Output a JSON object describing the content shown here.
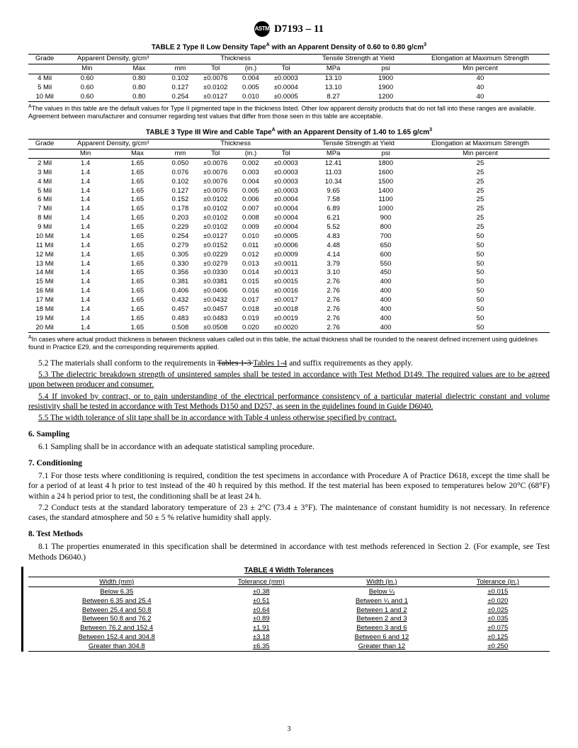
{
  "header": {
    "designation": "D7193 – 11"
  },
  "table2": {
    "title_pre": "TABLE 2  Type II Low Density Tape",
    "title_post": " with an Apparent Density of 0.60 to 0.80 g/cm",
    "note_letter": "A",
    "group_headers": [
      "Grade",
      "Apparent Density, g/cm³",
      "Thickness",
      "Tensile Strength at Yield",
      "Elongation at Maximum Strength"
    ],
    "sub_headers": [
      "",
      "Min",
      "Max",
      "mm",
      "Tol",
      "(in.)",
      "Tol",
      "MPa",
      "psi",
      "Min percent"
    ],
    "rows": [
      [
        "4 Mil",
        "0.60",
        "0.80",
        "0.102",
        "±0.0076",
        "0.004",
        "±0.0003",
        "13.10",
        "1900",
        "40"
      ],
      [
        "5 Mil",
        "0.60",
        "0.80",
        "0.127",
        "±0.0102",
        "0.005",
        "±0.0004",
        "13.10",
        "1900",
        "40"
      ],
      [
        "10 Mil",
        "0.60",
        "0.80",
        "0.254",
        "±0.0127",
        "0.010",
        "±0.0005",
        "8.27",
        "1200",
        "40"
      ]
    ],
    "footnote": "The values in this table are the default values for Type II pigmented tape in the thickness listed. Other low apparent density products that do not fall into these ranges are available. Agreement between manufacturer and consumer regarding test values that differ from those seen in this table are acceptable."
  },
  "table3": {
    "title_pre": "TABLE 3  Type III Wire and Cable Tape",
    "title_post": " with an Apparent Density of 1.40 to 1.65 g/cm",
    "note_letter": "A",
    "group_headers": [
      "Grade",
      "Apparent Density, g/cm³",
      "Thickness",
      "Tensile Strength at Yield",
      "Elongation at Maximum Strength"
    ],
    "sub_headers": [
      "",
      "Min",
      "Max",
      "mm",
      "Tol",
      "(in.)",
      "Tol",
      "MPa",
      "psi",
      "Min percent"
    ],
    "rows": [
      [
        "2 Mil",
        "1.4",
        "1.65",
        "0.050",
        "±0.0076",
        "0.002",
        "±0.0003",
        "12.41",
        "1800",
        "25"
      ],
      [
        "3 Mil",
        "1.4",
        "1.65",
        "0.076",
        "±0.0076",
        "0.003",
        "±0.0003",
        "11.03",
        "1600",
        "25"
      ],
      [
        "4 Mil",
        "1.4",
        "1.65",
        "0.102",
        "±0.0076",
        "0.004",
        "±0.0003",
        "10.34",
        "1500",
        "25"
      ],
      [
        "5 Mil",
        "1.4",
        "1.65",
        "0.127",
        "±0.0076",
        "0.005",
        "±0.0003",
        "9.65",
        "1400",
        "25"
      ],
      [
        "6 Mil",
        "1.4",
        "1.65",
        "0.152",
        "±0.0102",
        "0.006",
        "±0.0004",
        "7.58",
        "1100",
        "25"
      ],
      [
        "7 Mil",
        "1.4",
        "1.65",
        "0.178",
        "±0.0102",
        "0.007",
        "±0.0004",
        "6.89",
        "1000",
        "25"
      ],
      [
        "8 Mil",
        "1.4",
        "1.65",
        "0.203",
        "±0.0102",
        "0.008",
        "±0.0004",
        "6.21",
        "900",
        "25"
      ],
      [
        "9 Mil",
        "1.4",
        "1.65",
        "0.229",
        "±0.0102",
        "0.009",
        "±0.0004",
        "5.52",
        "800",
        "25"
      ],
      [
        "10 Mil",
        "1.4",
        "1.65",
        "0.254",
        "±0.0127",
        "0.010",
        "±0.0005",
        "4.83",
        "700",
        "50"
      ],
      [
        "11 Mil",
        "1.4",
        "1.65",
        "0.279",
        "±0.0152",
        "0.011",
        "±0.0006",
        "4.48",
        "650",
        "50"
      ],
      [
        "12 Mil",
        "1.4",
        "1.65",
        "0.305",
        "±0.0229",
        "0.012",
        "±0.0009",
        "4.14",
        "600",
        "50"
      ],
      [
        "13 Mil",
        "1.4",
        "1.65",
        "0.330",
        "±0.0279",
        "0.013",
        "±0.0011",
        "3.79",
        "550",
        "50"
      ],
      [
        "14 Mil",
        "1.4",
        "1.65",
        "0.356",
        "±0.0330",
        "0.014",
        "±0.0013",
        "3.10",
        "450",
        "50"
      ],
      [
        "15 Mil",
        "1.4",
        "1.65",
        "0.381",
        "±0.0381",
        "0.015",
        "±0.0015",
        "2.76",
        "400",
        "50"
      ],
      [
        "16 Mil",
        "1.4",
        "1.65",
        "0.406",
        "±0.0406",
        "0.016",
        "±0.0016",
        "2.76",
        "400",
        "50"
      ],
      [
        "17 Mil",
        "1.4",
        "1.65",
        "0.432",
        "±0.0432",
        "0.017",
        "±0.0017",
        "2.76",
        "400",
        "50"
      ],
      [
        "18 Mil",
        "1.4",
        "1.65",
        "0.457",
        "±0.0457",
        "0.018",
        "±0.0018",
        "2.76",
        "400",
        "50"
      ],
      [
        "19 Mil",
        "1.4",
        "1.65",
        "0.483",
        "±0.0483",
        "0.019",
        "±0.0019",
        "2.76",
        "400",
        "50"
      ],
      [
        "20 Mil",
        "1.4",
        "1.65",
        "0.508",
        "±0.0508",
        "0.020",
        "±0.0020",
        "2.76",
        "400",
        "50"
      ]
    ],
    "footnote": "In cases where actual product thickness is between thickness values called out in this table, the actual thickness shall be rounded to the nearest defined increment using guidelines found in Practice E29, and the corresponding requirements applied."
  },
  "body": {
    "p52a": "5.2 The materials shall conform to the requirements in ",
    "p52_strike": "Tables 1-3 ",
    "p52_und": "Tables 1-4",
    "p52b": " and suffix requirements as they apply.",
    "p53": "5.3 The dielectric breakdown strength of unsintered samples shall be tested in accordance with Test Method D149. The required values are to be agreed upon between producer and consumer.",
    "p54": "5.4 If invoked by contract, or to gain understanding of the electrical performance consistency of a particular material dielectric constant and volume resistivity shall be tested in accordance with Test Methods D150 and D257, as seen in the guidelines found in Guide D6040.",
    "p55": "5.5 The width tolerance of slit tape shall be in accordance with Table 4 unless otherwise specified by contract.",
    "s6": "6. Sampling",
    "p61": "6.1 Sampling shall be in accordance with an adequate statistical sampling procedure.",
    "s7": "7. Conditioning",
    "p71": "7.1 For those tests where conditioning is required, condition the test specimens in accordance with Procedure A of Practice D618, except the time shall be for a period of at least 4 h prior to test instead of the 40 h required by this method. If the test material has been exposed to temperatures below 20°C (68°F) within a 24 h period prior to test, the conditioning shall be at least 24 h.",
    "p72": "7.2 Conduct tests at the standard laboratory temperature of 23 ± 2°C (73.4 ± 3°F). The maintenance of constant humidity is not necessary. In reference cases, the standard atmosphere and 50 ± 5 % relative humidity shall apply.",
    "s8": "8. Test Methods",
    "p81": "8.1 The properties enumerated in this specification shall be determined in accordance with test methods referenced in Section 2. (For example, see Test Methods D6040.)"
  },
  "table4": {
    "title": "TABLE 4  Width Tolerances",
    "headers": [
      "Width (mm)",
      "Tolerance (mm)",
      "Width (in.)",
      "Tolerance (in.)"
    ],
    "rows": [
      [
        "Below 6.35",
        "±0.38",
        "Below ¼",
        "±0.015"
      ],
      [
        "Between 6.35 and 25.4",
        "±0.51",
        "Between ¼ and 1",
        "±0.020"
      ],
      [
        "Between 25.4 and 50.8",
        "±0.64",
        "Between 1 and 2",
        "±0.025"
      ],
      [
        "Between 50.8 and 76.2",
        "±0.89",
        "Between 2 and 3",
        "±0.035"
      ],
      [
        "Between 76.2 and 152.4",
        "±1.91",
        "Between 3 and 6",
        "±0.075"
      ],
      [
        "Between 152.4 and 304.8",
        "±3.18",
        "Between 6 and 12",
        "±0.125"
      ],
      [
        "Greater than 304.8",
        "±6.35",
        "Greater than 12",
        "±0.250"
      ]
    ]
  },
  "page_number": "3"
}
